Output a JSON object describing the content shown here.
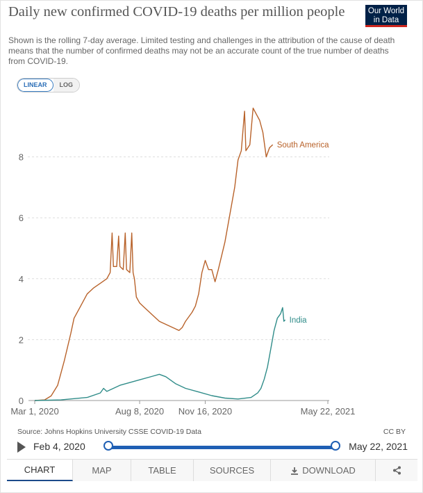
{
  "header": {
    "title": "Daily new confirmed COVID-19 deaths per million people",
    "subtitle": "Shown is the rolling 7-day average. Limited testing and challenges in the attribution of the cause of death means that the number of confirmed deaths may not be an accurate count of the true number of deaths from COVID-19.",
    "logo_line1": "Our World",
    "logo_line2": "in Data"
  },
  "scale_toggle": {
    "linear": "LINEAR",
    "log": "LOG",
    "selected": "LINEAR"
  },
  "colors": {
    "south_america": "#b8622a",
    "india": "#2f8c89",
    "accent": "#1f5fb4"
  },
  "chart_data": {
    "type": "line",
    "title": "Daily new confirmed COVID-19 deaths per million people",
    "ylim": [
      0,
      10
    ],
    "y_ticks": [
      "0",
      "2",
      "4",
      "6",
      "8"
    ],
    "x_ticks": [
      "Mar 1, 2020",
      "Aug 8, 2020",
      "Nov 16, 2020",
      "May 22, 2021"
    ],
    "x_tick_days": [
      0,
      160,
      260,
      447
    ],
    "x_range_days": [
      0,
      447
    ],
    "gridlines": true,
    "legend": "inline-right",
    "series": [
      {
        "name": "South America",
        "points": [
          [
            0,
            0
          ],
          [
            15,
            0.02
          ],
          [
            25,
            0.15
          ],
          [
            35,
            0.5
          ],
          [
            45,
            1.3
          ],
          [
            55,
            2.2
          ],
          [
            60,
            2.7
          ],
          [
            70,
            3.1
          ],
          [
            80,
            3.5
          ],
          [
            90,
            3.7
          ],
          [
            100,
            3.85
          ],
          [
            110,
            4.0
          ],
          [
            115,
            4.2
          ],
          [
            118,
            5.5
          ],
          [
            120,
            4.4
          ],
          [
            125,
            4.4
          ],
          [
            128,
            5.4
          ],
          [
            130,
            4.4
          ],
          [
            135,
            4.3
          ],
          [
            138,
            5.5
          ],
          [
            140,
            4.3
          ],
          [
            145,
            4.2
          ],
          [
            148,
            5.5
          ],
          [
            150,
            4.2
          ],
          [
            152,
            4.0
          ],
          [
            155,
            3.4
          ],
          [
            160,
            3.2
          ],
          [
            165,
            3.1
          ],
          [
            170,
            3.0
          ],
          [
            180,
            2.8
          ],
          [
            190,
            2.6
          ],
          [
            200,
            2.5
          ],
          [
            210,
            2.4
          ],
          [
            220,
            2.3
          ],
          [
            225,
            2.4
          ],
          [
            230,
            2.6
          ],
          [
            240,
            2.9
          ],
          [
            245,
            3.1
          ],
          [
            250,
            3.5
          ],
          [
            255,
            4.2
          ],
          [
            260,
            4.6
          ],
          [
            265,
            4.3
          ],
          [
            270,
            4.3
          ],
          [
            275,
            3.9
          ],
          [
            280,
            4.3
          ],
          [
            290,
            5.2
          ],
          [
            300,
            6.4
          ],
          [
            305,
            7.0
          ],
          [
            310,
            7.9
          ],
          [
            315,
            8.2
          ],
          [
            320,
            9.5
          ],
          [
            322,
            8.2
          ],
          [
            328,
            8.4
          ],
          [
            333,
            9.6
          ],
          [
            338,
            9.4
          ],
          [
            343,
            9.2
          ],
          [
            348,
            8.8
          ],
          [
            353,
            8.0
          ],
          [
            358,
            8.3
          ],
          [
            363,
            8.4
          ]
        ]
      },
      {
        "name": "India",
        "points": [
          [
            0,
            0
          ],
          [
            40,
            0.02
          ],
          [
            80,
            0.1
          ],
          [
            100,
            0.25
          ],
          [
            105,
            0.4
          ],
          [
            110,
            0.3
          ],
          [
            130,
            0.5
          ],
          [
            160,
            0.68
          ],
          [
            180,
            0.8
          ],
          [
            190,
            0.86
          ],
          [
            200,
            0.78
          ],
          [
            215,
            0.55
          ],
          [
            230,
            0.4
          ],
          [
            250,
            0.28
          ],
          [
            270,
            0.16
          ],
          [
            290,
            0.08
          ],
          [
            310,
            0.05
          ],
          [
            330,
            0.1
          ],
          [
            340,
            0.25
          ],
          [
            345,
            0.4
          ],
          [
            350,
            0.7
          ],
          [
            355,
            1.1
          ],
          [
            360,
            1.7
          ],
          [
            365,
            2.3
          ],
          [
            370,
            2.7
          ],
          [
            375,
            2.85
          ],
          [
            378,
            3.05
          ],
          [
            380,
            2.6
          ],
          [
            382,
            2.65
          ]
        ]
      }
    ]
  },
  "footer": {
    "source": "Source: Johns Hopkins University CSSE COVID-19 Data",
    "license": "CC BY",
    "timeline_start": "Feb 4, 2020",
    "timeline_end": "May 22, 2021"
  },
  "tabs": [
    {
      "label": "CHART",
      "active": true
    },
    {
      "label": "MAP"
    },
    {
      "label": "TABLE"
    },
    {
      "label": "SOURCES"
    },
    {
      "label": "DOWNLOAD",
      "icon": "download-icon"
    },
    {
      "label": "",
      "icon": "share-icon"
    }
  ]
}
